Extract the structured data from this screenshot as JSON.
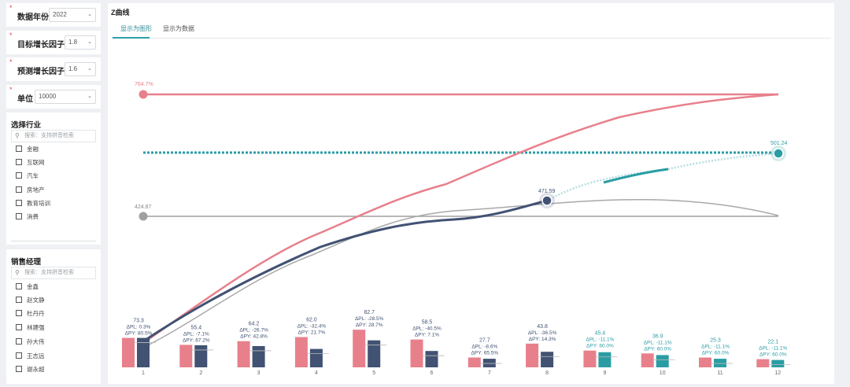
{
  "filters": [
    {
      "required": "*",
      "label": "数据年份",
      "value": "2022"
    },
    {
      "required": "*",
      "label": "目标增长因子",
      "value": "1.8"
    },
    {
      "required": "*",
      "label": "预测增长因子",
      "value": "1.6"
    },
    {
      "required": "*",
      "label": "单位",
      "value": "10000"
    }
  ],
  "industry": {
    "title": "选择行业",
    "search_placeholder": "搜索：支持拼音检索",
    "items": [
      "金融",
      "互联网",
      "汽车",
      "房地产",
      "教育培训",
      "消费"
    ]
  },
  "manager": {
    "title": "销售经理",
    "search_placeholder": "搜索：支持拼音检索",
    "items": [
      "金鑫",
      "赵文静",
      "杜丹丹",
      "林建强",
      "孙大伟",
      "王志远",
      "谢永超"
    ]
  },
  "main": {
    "title": "Z曲线",
    "tabs": [
      "显示为图形",
      "显示为数据"
    ]
  },
  "colors": {
    "target": "#e8808c",
    "actual": "#415273",
    "forecast": "#2a9da4",
    "base": "#a0a0a0"
  },
  "chart_data": {
    "type": "line",
    "reference_lines": [
      {
        "label": "764.7%",
        "value": 764.7
      },
      {
        "label": "501.24",
        "value": 501.24
      },
      {
        "label": "424.87",
        "value": 424.87
      }
    ],
    "endpoint_labels": {
      "actual": "471.59"
    },
    "categories": [
      "1",
      "2",
      "3",
      "4",
      "5",
      "6",
      "7",
      "8",
      "9",
      "10",
      "11",
      "12"
    ],
    "bars": [
      {
        "cat": "1",
        "value": "73.3",
        "dpl": "ΔPL: 0.3%",
        "dpy": "ΔPY: 80.5%",
        "target": 0.72,
        "actual": 0.72,
        "type": "actual"
      },
      {
        "cat": "2",
        "value": "55.4",
        "dpl": "ΔPL: -7.1%",
        "dpy": "ΔPY: 67.2%",
        "target": 0.55,
        "actual": 0.54,
        "type": "actual"
      },
      {
        "cat": "3",
        "value": "64.2",
        "dpl": "ΔPL: -26.7%",
        "dpy": "ΔPY: 42.8%",
        "target": 0.64,
        "actual": 0.52,
        "type": "actual"
      },
      {
        "cat": "4",
        "value": "62.0",
        "dpl": "ΔPL: -32.4%",
        "dpy": "ΔPY: 21.7%",
        "target": 0.74,
        "actual": 0.45,
        "type": "actual"
      },
      {
        "cat": "5",
        "value": "82.7",
        "dpl": "ΔPL: -28.5%",
        "dpy": "ΔPY: 28.7%",
        "target": 0.92,
        "actual": 0.66,
        "type": "actual"
      },
      {
        "cat": "6",
        "value": "58.5",
        "dpl": "ΔPL: -40.5%",
        "dpy": "ΔPY: 7.1%",
        "target": 0.68,
        "actual": 0.4,
        "type": "actual"
      },
      {
        "cat": "7",
        "value": "27.7",
        "dpl": "ΔPL: -8.6%",
        "dpy": "ΔPY: 65.5%",
        "target": 0.24,
        "actual": 0.21,
        "type": "actual"
      },
      {
        "cat": "8",
        "value": "43.8",
        "dpl": "ΔPL: -36.5%",
        "dpy": "ΔPY: 14.3%",
        "target": 0.58,
        "actual": 0.38,
        "type": "actual"
      },
      {
        "cat": "9",
        "value": "45.4",
        "dpl": "ΔPL: -11.1%",
        "dpy": "ΔPY: 60.0%",
        "target": 0.41,
        "actual": 0.37,
        "type": "forecast"
      },
      {
        "cat": "10",
        "value": "36.9",
        "dpl": "ΔPL: -11.1%",
        "dpy": "ΔPY: 60.0%",
        "target": 0.34,
        "actual": 0.3,
        "type": "forecast"
      },
      {
        "cat": "11",
        "value": "25.3",
        "dpl": "ΔPL: -11.1%",
        "dpy": "ΔPY: 60.0%",
        "target": 0.24,
        "actual": 0.21,
        "type": "forecast"
      },
      {
        "cat": "12",
        "value": "22.1",
        "dpl": "ΔPL: -11.1%",
        "dpy": "ΔPY: 60.0%",
        "target": 0.2,
        "actual": 0.18,
        "type": "forecast"
      }
    ]
  }
}
